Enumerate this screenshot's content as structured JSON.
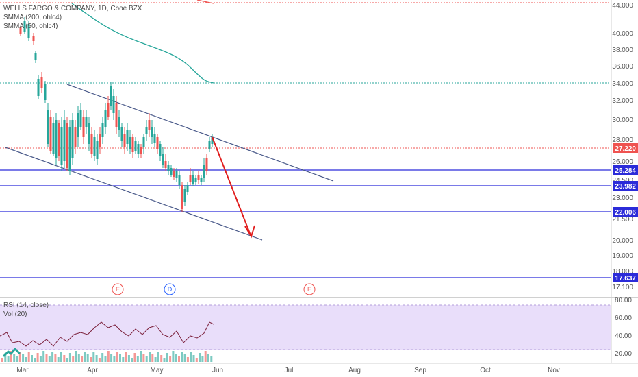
{
  "header": {
    "symbol_title": "WELLS FARGO & COMPANY, 1D, Cboe BZX",
    "indicator_smma200": "SMMA (200, ohlc4)",
    "indicator_smma50": "SMMA (50, ohlc4)"
  },
  "price_axis": {
    "ticks": [
      "44.000",
      "40.000",
      "38.000",
      "36.000",
      "34.000",
      "32.000",
      "30.000",
      "28.000",
      "26.000",
      "24.500",
      "23.000",
      "21.500",
      "20.000",
      "19.000",
      "18.000",
      "17.100"
    ]
  },
  "price_tags": [
    {
      "label": "27.220",
      "color": "#ef5350"
    },
    {
      "label": "25.284",
      "color": "#2b2bd9"
    },
    {
      "label": "23.982",
      "color": "#2b2bd9"
    },
    {
      "label": "22.006",
      "color": "#2b2bd9"
    },
    {
      "label": "17.637",
      "color": "#2b2bd9"
    }
  ],
  "time_axis": {
    "labels": [
      "Mar",
      "Apr",
      "May",
      "Jun",
      "Jul",
      "Aug",
      "Sep",
      "Oct",
      "Nov"
    ]
  },
  "events": [
    {
      "label": "E",
      "color": "#ef5350"
    },
    {
      "label": "D",
      "color": "#2962ff"
    },
    {
      "label": "E",
      "color": "#ef5350"
    }
  ],
  "rsi_pane": {
    "rsi_label": "RSI (14, close)",
    "vol_label": "Vol (20)",
    "ticks": [
      "80.00",
      "60.00",
      "40.00",
      "20.00"
    ]
  },
  "colors": {
    "up": "#26a69a",
    "down": "#ef5350",
    "channel": "#4a5a8a",
    "hline_blue": "#2b2bd9",
    "hline_teal": "#26a69a",
    "hline_red": "#ef5350",
    "smma": "#26a69a",
    "rsi_line": "#7b1f3a",
    "rsi_band": "#e9defa"
  }
}
